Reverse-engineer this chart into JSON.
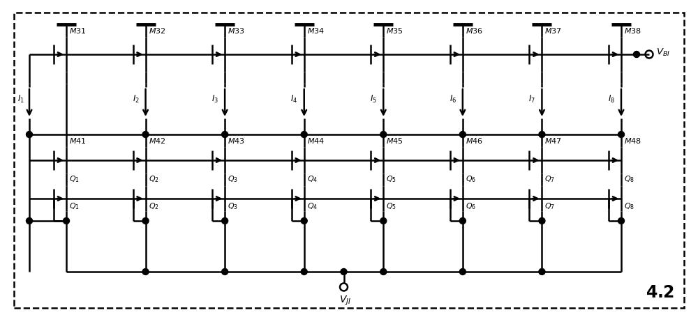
{
  "background_color": "#ffffff",
  "fig_number": "4.2",
  "n_cells": 8,
  "pmos_labels": [
    "M31",
    "M32",
    "M33",
    "M34",
    "M35",
    "M36",
    "M37",
    "M38"
  ],
  "nmos_labels": [
    "M41",
    "M42",
    "M43",
    "M44",
    "M45",
    "M46",
    "M47",
    "M48"
  ],
  "bjt_labels": [
    "Q_1",
    "Q_2",
    "Q_3",
    "Q_4",
    "Q_5",
    "Q_6",
    "Q_7",
    "Q_8"
  ],
  "current_labels": [
    "I_1",
    "I_2",
    "I_3",
    "I_4",
    "I_5",
    "I_6",
    "I_7",
    "I_8"
  ],
  "vbi_label": "V_{BI}",
  "vji_label": "V_{JI}",
  "lw": 1.8,
  "lw_thick": 3.5,
  "dot_r": 0.045,
  "oc_r": 0.055
}
